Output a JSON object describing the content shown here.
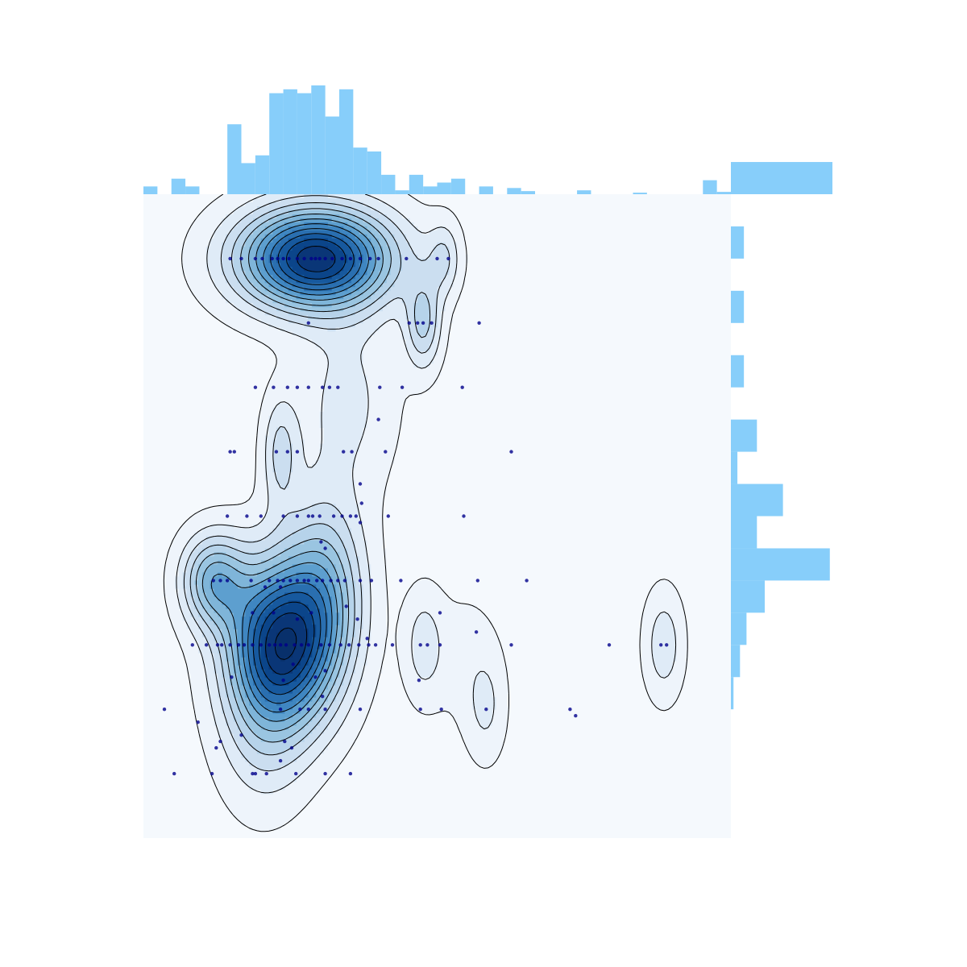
{
  "chart_data": {
    "type": "scatter",
    "subtype": "joint-density",
    "title": "",
    "xlabel": "",
    "ylabel": "",
    "xlim": [
      0,
      42
    ],
    "ylim": [
      0,
      10
    ],
    "grid": false,
    "colors": {
      "plot_background": "#f5f9fd",
      "marginal_bars": "#87cefa",
      "points": "#00008b",
      "density_levels": [
        "#eef4fb",
        "#dfebf7",
        "#cbdef0",
        "#b6d3ea",
        "#9ac5e1",
        "#7fb5d9",
        "#5d9fcf",
        "#3f86c1",
        "#2a6fb0",
        "#17599e",
        "#0b458a",
        "#0a3677",
        "#08306b"
      ],
      "contour_lines": "#000000"
    },
    "density_peaks": [
      {
        "x": 12.3,
        "y": 9.0,
        "sx": 3.8,
        "sy": 0.55,
        "w": 1.0
      },
      {
        "x": 9.8,
        "y": 3.0,
        "sx": 2.6,
        "sy": 0.9,
        "w": 0.95
      },
      {
        "x": 5.0,
        "y": 4.0,
        "sx": 1.6,
        "sy": 0.5,
        "w": 0.45
      },
      {
        "x": 13.0,
        "y": 3.9,
        "sx": 2.0,
        "sy": 1.0,
        "w": 0.35
      },
      {
        "x": 20.0,
        "y": 8.0,
        "sx": 0.9,
        "sy": 0.5,
        "w": 0.3
      },
      {
        "x": 21.5,
        "y": 9.0,
        "sx": 0.8,
        "sy": 0.4,
        "w": 0.18
      },
      {
        "x": 9.8,
        "y": 6.0,
        "sx": 0.9,
        "sy": 0.6,
        "w": 0.22
      },
      {
        "x": 14.5,
        "y": 6.8,
        "sx": 2.5,
        "sy": 1.0,
        "w": 0.15
      },
      {
        "x": 8.5,
        "y": 1.6,
        "sx": 2.2,
        "sy": 0.9,
        "w": 0.15
      },
      {
        "x": 20.0,
        "y": 3.0,
        "sx": 1.0,
        "sy": 0.6,
        "w": 0.16
      },
      {
        "x": 24.5,
        "y": 2.0,
        "sx": 1.0,
        "sy": 0.6,
        "w": 0.12
      },
      {
        "x": 23.0,
        "y": 2.8,
        "sx": 1.8,
        "sy": 0.8,
        "w": 0.07
      },
      {
        "x": 37.2,
        "y": 3.0,
        "sx": 1.0,
        "sy": 0.6,
        "w": 0.18
      }
    ],
    "points": [
      [
        6.2,
        9
      ],
      [
        7.0,
        9
      ],
      [
        8.0,
        9
      ],
      [
        8.5,
        9
      ],
      [
        9.2,
        9
      ],
      [
        9.6,
        9
      ],
      [
        10.0,
        9
      ],
      [
        10.4,
        9
      ],
      [
        11.0,
        9
      ],
      [
        11.5,
        9
      ],
      [
        12.0,
        9
      ],
      [
        12.3,
        9
      ],
      [
        12.6,
        9
      ],
      [
        13.0,
        9
      ],
      [
        13.5,
        9
      ],
      [
        14.2,
        9
      ],
      [
        14.8,
        9
      ],
      [
        15.5,
        9
      ],
      [
        16.2,
        9
      ],
      [
        16.8,
        9
      ],
      [
        18.8,
        9
      ],
      [
        21.0,
        9
      ],
      [
        21.8,
        9
      ],
      [
        19.0,
        8
      ],
      [
        19.6,
        8
      ],
      [
        20.0,
        8
      ],
      [
        20.6,
        8
      ],
      [
        24.0,
        8
      ],
      [
        11.8,
        8
      ],
      [
        8.0,
        7
      ],
      [
        9.3,
        7
      ],
      [
        10.3,
        7
      ],
      [
        11.0,
        7
      ],
      [
        11.8,
        7
      ],
      [
        12.8,
        7
      ],
      [
        13.3,
        7
      ],
      [
        13.9,
        7
      ],
      [
        16.9,
        7
      ],
      [
        18.5,
        7
      ],
      [
        22.8,
        7
      ],
      [
        16.8,
        6.5
      ],
      [
        6.2,
        6
      ],
      [
        6.5,
        6
      ],
      [
        9.5,
        6
      ],
      [
        10.3,
        6
      ],
      [
        11.0,
        6
      ],
      [
        14.3,
        6
      ],
      [
        14.9,
        6
      ],
      [
        17.3,
        6
      ],
      [
        26.3,
        6
      ],
      [
        15.5,
        5.5
      ],
      [
        15.6,
        5.2
      ],
      [
        6.0,
        5
      ],
      [
        7.4,
        5
      ],
      [
        8.4,
        5
      ],
      [
        10.0,
        5
      ],
      [
        11.0,
        5
      ],
      [
        11.8,
        5
      ],
      [
        12.1,
        5
      ],
      [
        12.6,
        5
      ],
      [
        13.6,
        5
      ],
      [
        14.2,
        5
      ],
      [
        14.8,
        5
      ],
      [
        15.2,
        5
      ],
      [
        17.5,
        5
      ],
      [
        22.9,
        5
      ],
      [
        15.5,
        4.9
      ],
      [
        13.0,
        4.5
      ],
      [
        12.7,
        4.6
      ],
      [
        5.0,
        4
      ],
      [
        5.5,
        4
      ],
      [
        6.0,
        4
      ],
      [
        7.7,
        4
      ],
      [
        9.0,
        4
      ],
      [
        9.6,
        4
      ],
      [
        10.0,
        4
      ],
      [
        10.5,
        4
      ],
      [
        11.0,
        4
      ],
      [
        11.5,
        4
      ],
      [
        11.8,
        4
      ],
      [
        12.4,
        4
      ],
      [
        12.8,
        4
      ],
      [
        13.4,
        4
      ],
      [
        13.9,
        4
      ],
      [
        14.4,
        4
      ],
      [
        15.5,
        4
      ],
      [
        16.3,
        4
      ],
      [
        18.4,
        4
      ],
      [
        23.9,
        4
      ],
      [
        27.4,
        4
      ],
      [
        14.5,
        3.6
      ],
      [
        15.3,
        3.4
      ],
      [
        16.0,
        3.1
      ],
      [
        11.0,
        3.4
      ],
      [
        12.0,
        3.5
      ],
      [
        21.2,
        3.5
      ],
      [
        23.8,
        3.2
      ],
      [
        9.3,
        3.5
      ],
      [
        7.8,
        3.5
      ],
      [
        8.7,
        3.9
      ],
      [
        9.8,
        3.9
      ],
      [
        3.5,
        3
      ],
      [
        4.5,
        3
      ],
      [
        5.3,
        3
      ],
      [
        5.6,
        3
      ],
      [
        6.2,
        3
      ],
      [
        6.8,
        3
      ],
      [
        7.2,
        3
      ],
      [
        7.8,
        3
      ],
      [
        8.4,
        3
      ],
      [
        9.0,
        3
      ],
      [
        9.4,
        3
      ],
      [
        9.8,
        3
      ],
      [
        10.2,
        3
      ],
      [
        10.8,
        3
      ],
      [
        11.3,
        3
      ],
      [
        11.8,
        3
      ],
      [
        12.7,
        3
      ],
      [
        13.3,
        3
      ],
      [
        14.1,
        3
      ],
      [
        14.7,
        3
      ],
      [
        15.4,
        3
      ],
      [
        16.1,
        3
      ],
      [
        16.6,
        3
      ],
      [
        17.8,
        3
      ],
      [
        19.8,
        3
      ],
      [
        20.3,
        3
      ],
      [
        21.2,
        3
      ],
      [
        26.3,
        3
      ],
      [
        33.3,
        3
      ],
      [
        37.0,
        3
      ],
      [
        37.4,
        3
      ],
      [
        10.7,
        2.7
      ],
      [
        12.3,
        2.5
      ],
      [
        13.0,
        2.6
      ],
      [
        6.3,
        2.5
      ],
      [
        10.0,
        2.45
      ],
      [
        19.7,
        2.45
      ],
      [
        12.8,
        2.2
      ],
      [
        1.5,
        2
      ],
      [
        9.8,
        2
      ],
      [
        11.2,
        2
      ],
      [
        11.8,
        2
      ],
      [
        13.0,
        2
      ],
      [
        15.5,
        2
      ],
      [
        19.8,
        2
      ],
      [
        21.3,
        2
      ],
      [
        24.5,
        2
      ],
      [
        30.5,
        2
      ],
      [
        30.9,
        1.9
      ],
      [
        3.9,
        1.8
      ],
      [
        5.5,
        1.5
      ],
      [
        7.0,
        1.6
      ],
      [
        10.1,
        1.5
      ],
      [
        10.6,
        1.4
      ],
      [
        9.8,
        1.2
      ],
      [
        5.2,
        1.4
      ],
      [
        2.2,
        1
      ],
      [
        4.9,
        1
      ],
      [
        7.8,
        1
      ],
      [
        8.0,
        1
      ],
      [
        8.8,
        1
      ],
      [
        10.9,
        1
      ],
      [
        13.0,
        1
      ],
      [
        14.8,
        1
      ]
    ],
    "x_hist": {
      "bin_width": 1.0,
      "counts": [
        1,
        0,
        2,
        1,
        0,
        0,
        9,
        4,
        5,
        13,
        13.5,
        13,
        14,
        10,
        13.5,
        6,
        5.5,
        2.5,
        0.5,
        2.5,
        1,
        1.5,
        2,
        0,
        1,
        0,
        0.8,
        0.4,
        0,
        0,
        0,
        0.5,
        0,
        0,
        0,
        0.2,
        0,
        0,
        0,
        0,
        1.8,
        0.3
      ]
    },
    "y_hist": {
      "bin_width": 0.5,
      "counts": [
        0,
        0,
        0,
        0,
        0.2,
        0.7,
        1.2,
        2.6,
        7.6,
        2,
        4,
        0.5,
        2,
        0,
        1,
        0,
        1,
        0,
        1,
        0,
        7.8,
        0
      ]
    }
  }
}
